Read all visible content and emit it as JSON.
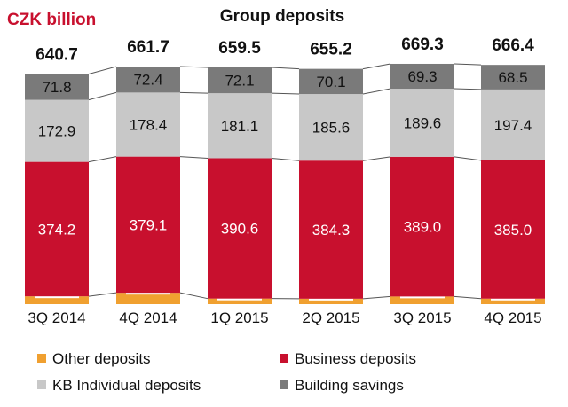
{
  "chart_data": {
    "type": "bar",
    "stacked": true,
    "title": "Group deposits",
    "unit_label": "CZK billion",
    "categories": [
      "3Q 2014",
      "4Q 2014",
      "1Q 2015",
      "2Q 2015",
      "3Q 2015",
      "4Q 2015"
    ],
    "totals": [
      "640.7",
      "661.7",
      "659.5",
      "655.2",
      "669.3",
      "666.4"
    ],
    "series": [
      {
        "name": "Other deposits",
        "color": "#f0a030",
        "values": [
          21.8,
          31.7,
          15.6,
          15.2,
          21.3,
          15.4
        ]
      },
      {
        "name": "Business deposits",
        "color": "#c8102e",
        "values": [
          374.2,
          379.1,
          390.6,
          384.3,
          389.0,
          385.0
        ]
      },
      {
        "name": "KB Individual deposits",
        "color": "#c8c8c8",
        "values": [
          172.9,
          178.4,
          181.1,
          185.6,
          189.6,
          197.4
        ]
      },
      {
        "name": "Building savings",
        "color": "#7a7a7a",
        "values": [
          71.8,
          72.4,
          72.1,
          70.1,
          69.3,
          68.5
        ]
      }
    ],
    "label_overrides": {
      "Building savings": [
        "71.8",
        "72.4",
        "72.1",
        "70.1",
        "69.3",
        "68.5"
      ]
    },
    "legend_position": "bottom",
    "grid": false,
    "colors": {
      "unit_label": "#c8102e",
      "connector": "#555555"
    }
  }
}
